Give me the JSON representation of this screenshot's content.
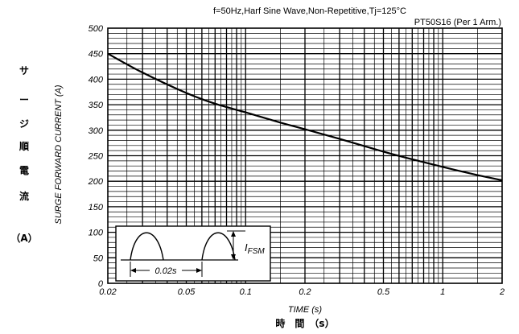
{
  "chart_data": {
    "type": "line",
    "title": "f=50Hz,Harf Sine Wave,Non-Repetitive,Tj=125°C",
    "subtitle": "PT50S16 (Per 1 Arm.)",
    "xlabel": "TIME (s)",
    "xlabel_jp": "時　間　（s）",
    "ylabel": "SURGE FORWARD CURRENT (A)",
    "ylabel_jp": [
      "サ",
      "ー",
      "ジ",
      "順",
      "電",
      "流",
      "（A）"
    ],
    "x_scale": "log",
    "xlim": [
      0.02,
      2
    ],
    "ylim": [
      0,
      500
    ],
    "grid": true,
    "x_ticks": [
      {
        "value": 0.02,
        "label": "0.02"
      },
      {
        "value": 0.05,
        "label": "0.05"
      },
      {
        "value": 0.1,
        "label": "0.1"
      },
      {
        "value": 0.2,
        "label": "0.2"
      },
      {
        "value": 0.5,
        "label": "0.5"
      },
      {
        "value": 1,
        "label": "1"
      },
      {
        "value": 2,
        "label": "2"
      }
    ],
    "y_ticks": [
      0,
      50,
      100,
      150,
      200,
      250,
      300,
      350,
      400,
      450,
      500
    ],
    "series": [
      {
        "x": [
          0.02,
          0.03,
          0.05,
          0.07,
          0.1,
          0.15,
          0.2,
          0.3,
          0.5,
          0.7,
          1,
          1.5,
          2
        ],
        "y": [
          450,
          413,
          373,
          352,
          335,
          315,
          302,
          283,
          258,
          243,
          228,
          212,
          202
        ]
      }
    ],
    "inset": {
      "period_label": "0.02s",
      "current_label": "I",
      "current_subscript": "FSM"
    }
  }
}
